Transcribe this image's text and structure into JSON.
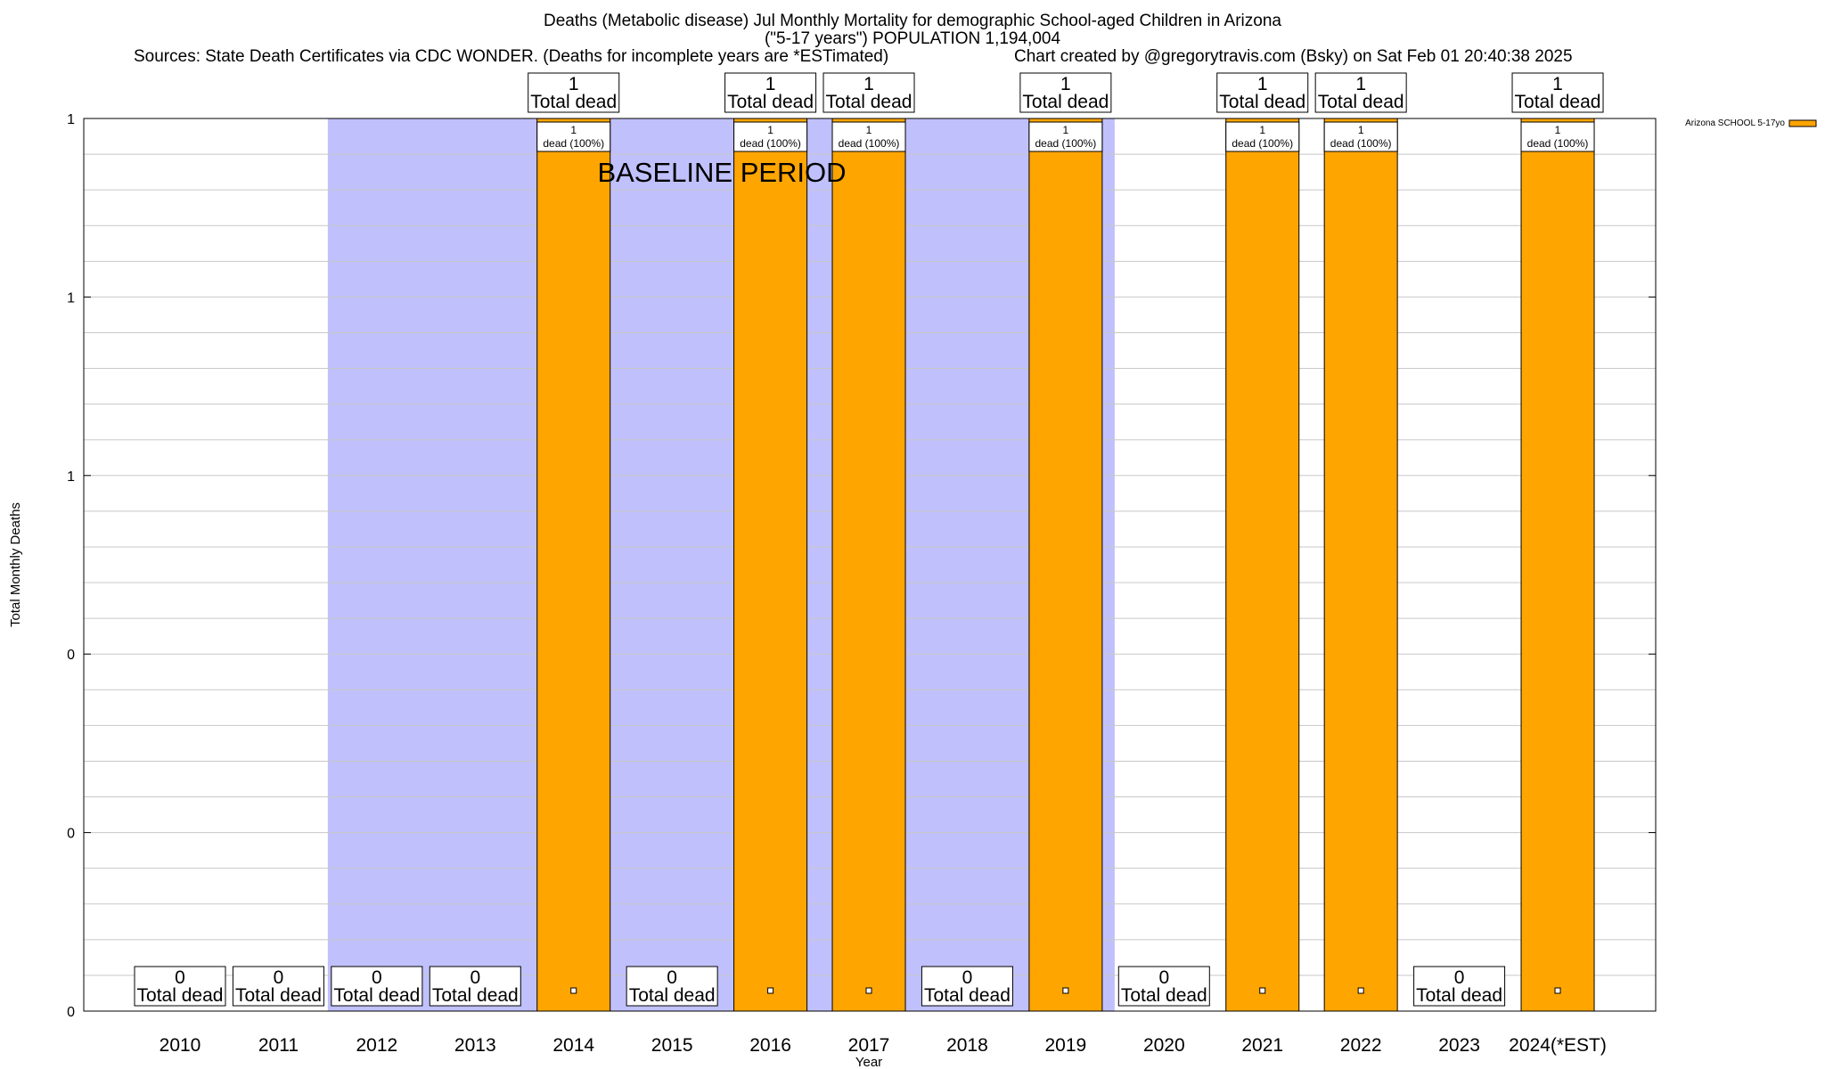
{
  "title_lines": [
    "Deaths (Metabolic disease) Jul Monthly Mortality for demographic School-aged Children in Arizona",
    "(\"5-17 years\") POPULATION 1,194,004"
  ],
  "sources": "Sources: State Death Certificates via CDC WONDER. (Deaths for incomplete years are *ESTimated)",
  "credit": "Chart created by @gregorytravis.com (Bsky) on Sat Feb 01 20:40:38 2025",
  "colors": {
    "bar": "#ffa500",
    "baseline_shade": "#c0c0fc",
    "grid": "#c8c8c8"
  },
  "chart_data": {
    "type": "bar",
    "title": "Deaths (Metabolic disease) Jul Monthly Mortality for demographic School-aged Children in Arizona",
    "subtitle": "(\"5-17 years\") POPULATION 1,194,004",
    "xlabel": "Year",
    "ylabel": "Total Monthly Deaths",
    "categories": [
      "2010",
      "2011",
      "2012",
      "2013",
      "2014",
      "2015",
      "2016",
      "2017",
      "2018",
      "2019",
      "2020",
      "2021",
      "2022",
      "2023",
      "2024(*EST)"
    ],
    "series": [
      {
        "name": "Arizona SCHOOL 5-17yo",
        "values": [
          0,
          0,
          0,
          0,
          1,
          0,
          1,
          1,
          0,
          1,
          0,
          1,
          1,
          0,
          1
        ]
      }
    ],
    "total_labels": [
      "0",
      "0",
      "0",
      "0",
      "1",
      "0",
      "1",
      "1",
      "0",
      "1",
      "0",
      "1",
      "1",
      "0",
      "1"
    ],
    "total_label_suffix": "Total dead",
    "bar_labels": [
      "",
      "",
      "",
      "",
      "1\ndead (100%)",
      "",
      "1\ndead (100%)",
      "1\ndead (100%)",
      "",
      "1\ndead (100%)",
      "",
      "1\ndead (100%)",
      "1\ndead (100%)",
      "",
      "1\ndead (100%)"
    ],
    "ylim": [
      0,
      1
    ],
    "y_tick_values": [
      0,
      0.2,
      0.4,
      0.6,
      0.8,
      1
    ],
    "y_tick_labels": [
      "0",
      "0",
      "0",
      "1",
      "1",
      "1"
    ],
    "baseline_annotation": "BASELINE PERIOD",
    "baseline_periods": [
      [
        "2012",
        "2019"
      ]
    ],
    "legend_placement": "top-right",
    "grid": true
  }
}
